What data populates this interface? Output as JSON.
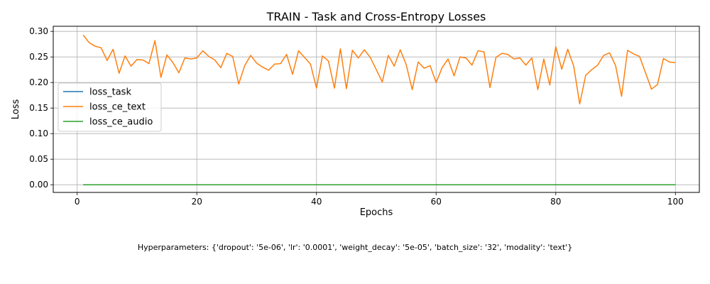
{
  "chart_data": {
    "type": "line",
    "title": "TRAIN - Task and Cross-Entropy Losses",
    "xlabel": "Epochs",
    "ylabel": "Loss",
    "xlim": [
      -4,
      104
    ],
    "ylim": [
      -0.015,
      0.31
    ],
    "xticks": [
      0,
      20,
      40,
      60,
      80,
      100
    ],
    "yticks": [
      0.0,
      0.05,
      0.1,
      0.15,
      0.2,
      0.25,
      0.3
    ],
    "grid": true,
    "legend_position": "center-left",
    "series": [
      {
        "name": "loss_task",
        "color": "#1f77b4",
        "x": [
          1,
          100
        ],
        "y": [
          0,
          0
        ]
      },
      {
        "name": "loss_ce_text",
        "color": "#ff7f0e",
        "x": [
          1,
          2,
          3,
          4,
          5,
          6,
          7,
          8,
          9,
          10,
          11,
          12,
          13,
          14,
          15,
          16,
          17,
          18,
          19,
          20,
          21,
          22,
          23,
          24,
          25,
          26,
          27,
          28,
          29,
          30,
          31,
          32,
          33,
          34,
          35,
          36,
          37,
          38,
          39,
          40,
          41,
          42,
          43,
          44,
          45,
          46,
          47,
          48,
          49,
          50,
          51,
          52,
          53,
          54,
          55,
          56,
          57,
          58,
          59,
          60,
          61,
          62,
          63,
          64,
          65,
          66,
          67,
          68,
          69,
          70,
          71,
          72,
          73,
          74,
          75,
          76,
          77,
          78,
          79,
          80,
          81,
          82,
          83,
          84,
          85,
          86,
          87,
          88,
          89,
          90,
          91,
          92,
          93,
          94,
          95,
          96,
          97,
          98,
          99,
          100
        ],
        "y": [
          0.293,
          0.278,
          0.271,
          0.268,
          0.243,
          0.265,
          0.218,
          0.252,
          0.232,
          0.245,
          0.244,
          0.237,
          0.282,
          0.21,
          0.254,
          0.239,
          0.219,
          0.248,
          0.246,
          0.248,
          0.262,
          0.251,
          0.244,
          0.229,
          0.257,
          0.251,
          0.197,
          0.233,
          0.253,
          0.238,
          0.23,
          0.224,
          0.236,
          0.237,
          0.255,
          0.216,
          0.262,
          0.249,
          0.236,
          0.189,
          0.252,
          0.242,
          0.189,
          0.266,
          0.188,
          0.263,
          0.248,
          0.264,
          0.249,
          0.225,
          0.201,
          0.253,
          0.232,
          0.264,
          0.235,
          0.186,
          0.24,
          0.228,
          0.233,
          0.2,
          0.229,
          0.246,
          0.213,
          0.25,
          0.248,
          0.234,
          0.262,
          0.26,
          0.19,
          0.249,
          0.257,
          0.255,
          0.246,
          0.248,
          0.234,
          0.248,
          0.186,
          0.246,
          0.195,
          0.27,
          0.226,
          0.265,
          0.232,
          0.158,
          0.214,
          0.225,
          0.234,
          0.253,
          0.258,
          0.233,
          0.173,
          0.263,
          0.256,
          0.251,
          0.219,
          0.187,
          0.196,
          0.247,
          0.24,
          0.239
        ]
      },
      {
        "name": "loss_ce_audio",
        "color": "#2ca02c",
        "x": [
          1,
          100
        ],
        "y": [
          0,
          0
        ]
      }
    ],
    "caption": "Hyperparameters: {'dropout': '5e-06', 'lr': '0.0001', 'weight_decay': '5e-05', 'batch_size': '32', 'modality': 'text'}"
  }
}
